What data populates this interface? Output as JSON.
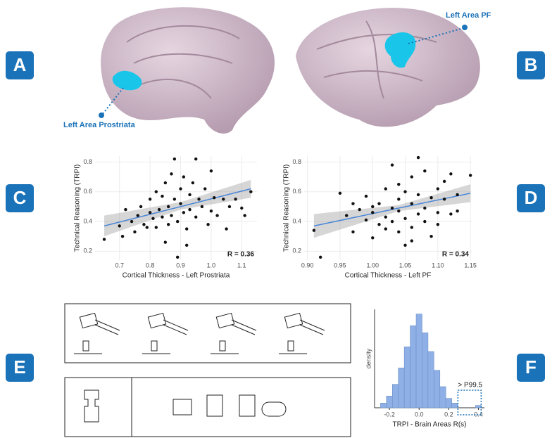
{
  "panels": [
    "A",
    "B",
    "C",
    "D",
    "E",
    "F"
  ],
  "annotations": [
    "Left Area Prostriata",
    "Left Area PF"
  ],
  "chart_data": [
    {
      "type": "scatter",
      "xlabel": "Cortical Thickness - Left Prostriata",
      "ylabel": "Technical Reasoning (TRPI)",
      "annotation": "R = 0.36",
      "color": "#111111",
      "grid": true,
      "xlim": [
        0.62,
        1.15
      ],
      "ylim": [
        0.14,
        0.84
      ],
      "xticks": [
        0.7,
        0.8,
        0.9,
        {
          "value": 1,
          "label": "1.0"
        },
        1.1
      ],
      "yticks": [
        0.2,
        0.4,
        0.6,
        0.8
      ],
      "x": [
        0.65,
        0.7,
        0.71,
        0.72,
        0.74,
        0.75,
        0.76,
        0.77,
        0.78,
        0.79,
        0.8,
        0.8,
        0.81,
        0.82,
        0.82,
        0.83,
        0.84,
        0.84,
        0.85,
        0.85,
        0.86,
        0.86,
        0.87,
        0.87,
        0.88,
        0.88,
        0.89,
        0.89,
        0.9,
        0.9,
        0.91,
        0.91,
        0.92,
        0.92,
        0.93,
        0.93,
        0.94,
        0.95,
        0.95,
        0.96,
        0.97,
        0.98,
        0.99,
        1.0,
        1.0,
        1.01,
        1.02,
        1.04,
        1.05,
        1.06,
        1.08,
        1.1,
        1.11,
        1.13
      ],
      "values": [
        0.28,
        0.37,
        0.3,
        0.48,
        0.4,
        0.33,
        0.44,
        0.5,
        0.38,
        0.36,
        0.46,
        0.55,
        0.42,
        0.6,
        0.36,
        0.48,
        0.57,
        0.43,
        0.26,
        0.66,
        0.5,
        0.38,
        0.72,
        0.44,
        0.82,
        0.55,
        0.4,
        0.16,
        0.52,
        0.62,
        0.46,
        0.7,
        0.35,
        0.24,
        0.58,
        0.48,
        0.66,
        0.43,
        0.82,
        0.55,
        0.5,
        0.62,
        0.38,
        0.47,
        0.74,
        0.56,
        0.44,
        0.55,
        0.35,
        0.5,
        0.55,
        0.49,
        0.44,
        0.6
      ],
      "trendline": {
        "color": "#4a86d8",
        "x": [
          0.65,
          0.9,
          1.13
        ],
        "y": [
          0.37,
          0.5,
          0.62
        ],
        "lower": [
          0.3,
          0.48,
          0.56
        ],
        "upper": [
          0.44,
          0.53,
          0.68
        ]
      }
    },
    {
      "type": "scatter",
      "xlabel": "Cortical Thickness - Left PF",
      "ylabel": "Technical Reasoning (TRPI)",
      "annotation": "R = 0.34",
      "color": "#111111",
      "grid": true,
      "xlim": [
        0.895,
        1.152
      ],
      "ylim": [
        0.14,
        0.84
      ],
      "xticks": [
        {
          "value": 0.9,
          "label": "0.90"
        },
        {
          "value": 0.95,
          "label": "0.95"
        },
        {
          "value": 1,
          "label": "1.00"
        },
        {
          "value": 1.05,
          "label": "1.05"
        },
        {
          "value": 1.1,
          "label": "1.10"
        },
        {
          "value": 1.15,
          "label": "1.15"
        }
      ],
      "yticks": [
        0.2,
        0.4,
        0.6,
        0.8
      ],
      "x": [
        0.91,
        0.92,
        0.95,
        0.96,
        0.97,
        0.97,
        0.98,
        0.99,
        0.99,
        1.0,
        1.0,
        1.01,
        1.01,
        1.02,
        1.02,
        1.03,
        1.03,
        1.03,
        1.04,
        1.04,
        1.04,
        1.05,
        1.05,
        1.05,
        1.06,
        1.06,
        1.06,
        1.07,
        1.07,
        1.07,
        1.08,
        1.08,
        1.08,
        1.09,
        1.09,
        1.1,
        1.1,
        1.1,
        1.11,
        1.11,
        1.12,
        1.12,
        1.13,
        1.13,
        1.15,
        1.04,
        1.06,
        1.0,
        1.02
      ],
      "values": [
        0.34,
        0.16,
        0.59,
        0.44,
        0.52,
        0.33,
        0.48,
        0.41,
        0.57,
        0.46,
        0.29,
        0.52,
        0.38,
        0.43,
        0.62,
        0.49,
        0.4,
        0.78,
        0.55,
        0.33,
        0.47,
        0.6,
        0.42,
        0.24,
        0.52,
        0.7,
        0.36,
        0.45,
        0.58,
        0.83,
        0.49,
        0.4,
        0.74,
        0.56,
        0.3,
        0.62,
        0.46,
        0.38,
        0.67,
        0.55,
        0.72,
        0.45,
        0.58,
        0.47,
        0.71,
        0.65,
        0.27,
        0.5,
        0.35
      ],
      "trendline": {
        "color": "#4a86d8",
        "x": [
          0.91,
          1.04,
          1.15
        ],
        "y": [
          0.37,
          0.49,
          0.59
        ],
        "lower": [
          0.29,
          0.47,
          0.53
        ],
        "upper": [
          0.45,
          0.51,
          0.65
        ]
      }
    },
    {
      "type": "histogram",
      "xlabel": "TRPI - Brain Areas R(s)",
      "ylabel": "density",
      "annotation": "> P99.5",
      "color": "#8fb0e6",
      "xlim": [
        -0.3,
        0.44
      ],
      "ylim": [
        0,
        42
      ],
      "xticks": [
        -0.2,
        {
          "value": 0,
          "label": "0.0"
        },
        0.2,
        0.4
      ],
      "bins": [
        -0.26,
        -0.22,
        -0.18,
        -0.14,
        -0.1,
        -0.06,
        -0.02,
        0.02,
        0.06,
        0.1,
        0.14,
        0.18,
        0.22,
        0.26,
        0.3,
        0.34,
        0.38,
        0.42
      ],
      "values": [
        2,
        5,
        10,
        17,
        26,
        35,
        40,
        32,
        24,
        16,
        9,
        4,
        2,
        0,
        0,
        0,
        1
      ]
    }
  ]
}
